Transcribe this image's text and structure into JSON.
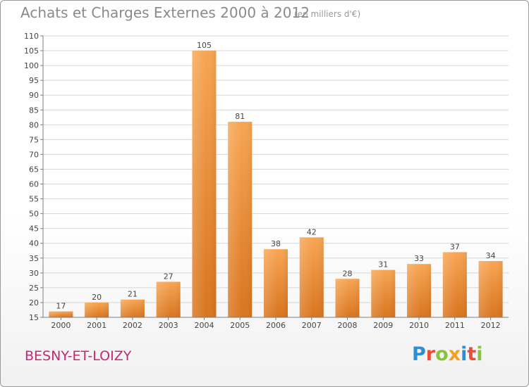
{
  "title": "Achats et Charges Externes 2000 à 2012",
  "subtitle": "(en milliers d'€)",
  "commune": "BESNY-ET-LOIZY",
  "logo": {
    "letters": [
      "P",
      "r",
      "o",
      "x",
      "i",
      "t",
      "i"
    ],
    "colors": [
      "#2a8fd6",
      "#e94e3a",
      "#8ac43f",
      "#f4a21e",
      "#2a8fd6",
      "#e94e3a",
      "#8ac43f"
    ]
  },
  "colors": {
    "bar_light": "#f7a552",
    "bar_dark": "#d9741e",
    "grid": "#d6d6d6",
    "axis": "#7f7f7f",
    "commune": "#c02a73"
  },
  "chart_data": {
    "type": "bar",
    "title": "Achats et Charges Externes 2000 à 2012",
    "subtitle": "(en milliers d'€)",
    "xlabel": "",
    "ylabel": "",
    "categories": [
      "2000",
      "2001",
      "2002",
      "2003",
      "2004",
      "2005",
      "2006",
      "2007",
      "2008",
      "2009",
      "2010",
      "2011",
      "2012"
    ],
    "values": [
      17,
      20,
      21,
      27,
      105,
      81,
      38,
      42,
      28,
      31,
      33,
      37,
      34
    ],
    "ylim": [
      15,
      110
    ],
    "yticks": [
      15,
      20,
      25,
      30,
      35,
      40,
      45,
      50,
      55,
      60,
      65,
      70,
      75,
      80,
      85,
      90,
      95,
      100,
      105,
      110
    ],
    "grid": true,
    "legend": "none"
  }
}
